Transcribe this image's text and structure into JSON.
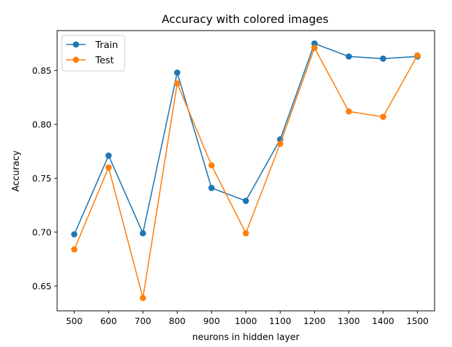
{
  "chart_data": {
    "type": "line",
    "title": "Accuracy with colored images",
    "xlabel": "neurons in hidden layer",
    "ylabel": "Accuracy",
    "x": [
      500,
      600,
      700,
      800,
      900,
      1000,
      1100,
      1200,
      1300,
      1400,
      1500
    ],
    "x_tick_labels": [
      "500",
      "600",
      "700",
      "800",
      "900",
      "1000",
      "1100",
      "1200",
      "1300",
      "1400",
      "1500"
    ],
    "y_ticks": [
      0.65,
      0.7,
      0.75,
      0.8,
      0.85
    ],
    "y_tick_labels": [
      "0.65",
      "0.70",
      "0.75",
      "0.80",
      "0.85"
    ],
    "xlim": [
      450,
      1550
    ],
    "ylim": [
      0.627,
      0.887
    ],
    "grid": false,
    "legend_position": "upper-left",
    "series": [
      {
        "name": "Train",
        "color": "#1f77b4",
        "marker": "circle",
        "values": [
          0.698,
          0.771,
          0.699,
          0.848,
          0.741,
          0.729,
          0.786,
          0.875,
          0.863,
          0.861,
          0.863
        ]
      },
      {
        "name": "Test",
        "color": "#ff7f0e",
        "marker": "circle",
        "values": [
          0.684,
          0.76,
          0.639,
          0.838,
          0.762,
          0.699,
          0.782,
          0.871,
          0.812,
          0.807,
          0.864
        ]
      }
    ]
  }
}
